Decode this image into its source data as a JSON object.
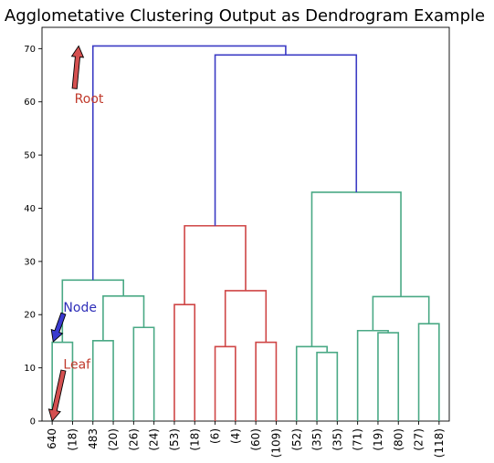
{
  "colors": {
    "above_threshold": "#3b3bc4",
    "cluster_red": "#cf4646",
    "cluster_green": "#4aa985",
    "annot_root": "#c0392b",
    "annot_node": "#2e2eb8",
    "annot_leaf": "#c0392b",
    "arrow_fill_red": "#d45050",
    "arrow_fill_blue": "#3a3ad0"
  },
  "chart_data": {
    "type": "dendrogram",
    "title": "Agglometative Clustering Output as Dendrogram Example",
    "ylim": [
      0,
      74
    ],
    "yticks": [
      0,
      10,
      20,
      30,
      40,
      50,
      60,
      70
    ],
    "leaves": [
      "640",
      "(18)",
      "483",
      "(20)",
      "(26)",
      "(24)",
      "(53)",
      "(18)",
      "(6)",
      "(4)",
      "(60)",
      "(109)",
      "(52)",
      "(35)",
      "(35)",
      "(71)",
      "(19)",
      "(80)",
      "(27)",
      "(118)"
    ],
    "links": [
      {
        "left": {
          "leaf": 0
        },
        "right": {
          "leaf": 1
        },
        "height": 14.8,
        "color": "cluster_green"
      },
      {
        "left": {
          "leaf": 2
        },
        "right": {
          "leaf": 3
        },
        "height": 15.1,
        "color": "cluster_green"
      },
      {
        "left": {
          "leaf": 4
        },
        "right": {
          "leaf": 5
        },
        "height": 17.6,
        "color": "cluster_green"
      },
      {
        "left": {
          "link": 1
        },
        "right": {
          "link": 2
        },
        "height": 23.5,
        "color": "cluster_green"
      },
      {
        "left": {
          "link": 0
        },
        "right": {
          "link": 3
        },
        "height": 26.5,
        "color": "cluster_green"
      },
      {
        "left": {
          "leaf": 6
        },
        "right": {
          "leaf": 7
        },
        "height": 21.9,
        "color": "cluster_red"
      },
      {
        "left": {
          "leaf": 8
        },
        "right": {
          "leaf": 9
        },
        "height": 14.0,
        "color": "cluster_red"
      },
      {
        "left": {
          "leaf": 10
        },
        "right": {
          "leaf": 11
        },
        "height": 14.8,
        "color": "cluster_red"
      },
      {
        "left": {
          "link": 6
        },
        "right": {
          "link": 7
        },
        "height": 24.5,
        "color": "cluster_red"
      },
      {
        "left": {
          "link": 5
        },
        "right": {
          "link": 8
        },
        "height": 36.7,
        "color": "cluster_red"
      },
      {
        "left": {
          "leaf": 13
        },
        "right": {
          "leaf": 14
        },
        "height": 12.9,
        "color": "cluster_green"
      },
      {
        "left": {
          "leaf": 12
        },
        "right": {
          "link": 10
        },
        "height": 14.0,
        "color": "cluster_green"
      },
      {
        "left": {
          "leaf": 16
        },
        "right": {
          "leaf": 17
        },
        "height": 16.6,
        "color": "cluster_green"
      },
      {
        "left": {
          "leaf": 15
        },
        "right": {
          "link": 12
        },
        "height": 17.0,
        "color": "cluster_green"
      },
      {
        "left": {
          "leaf": 18
        },
        "right": {
          "leaf": 19
        },
        "height": 18.3,
        "color": "cluster_green"
      },
      {
        "left": {
          "link": 13
        },
        "right": {
          "link": 14
        },
        "height": 23.4,
        "color": "cluster_green"
      },
      {
        "left": {
          "link": 11
        },
        "right": {
          "link": 15
        },
        "height": 43.0,
        "color": "cluster_green"
      },
      {
        "left": {
          "link": 9
        },
        "right": {
          "link": 16
        },
        "height": 68.8,
        "color": "above_threshold"
      },
      {
        "left": {
          "link": 4
        },
        "right": {
          "link": 17
        },
        "height": 70.5,
        "color": "above_threshold"
      }
    ],
    "annotations": [
      {
        "text": "Root",
        "color": "annot_root",
        "arrow_fill": "arrow_fill_red",
        "target": {
          "leaf_pos": 1.3,
          "y": 70.5
        },
        "from": {
          "leaf_pos": 1.1,
          "y": 62.5
        }
      },
      {
        "text": "Node",
        "color": "annot_node",
        "arrow_fill": "arrow_fill_blue",
        "target": {
          "leaf_pos": 0.05,
          "y": 14.9
        },
        "from": {
          "leaf_pos": 0.55,
          "y": 20.2
        }
      },
      {
        "text": "Leaf",
        "color": "annot_leaf",
        "arrow_fill": "arrow_fill_red",
        "target": {
          "leaf_pos": 0.0,
          "y": 0.0
        },
        "from": {
          "leaf_pos": 0.55,
          "y": 9.5
        }
      }
    ]
  }
}
